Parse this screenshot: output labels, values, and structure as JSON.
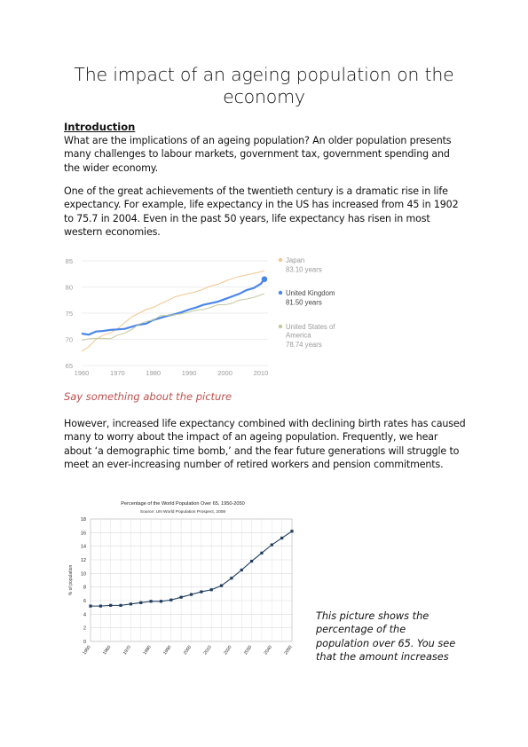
{
  "document": {
    "title": "The impact of an ageing population on the economy",
    "section_heading": "Introduction",
    "paragraph_1": "What are the implications of an ageing population? An older population presents many challenges to labour markets, government tax, government spending and the wider economy.",
    "paragraph_2": "One of the great achievements of the twentieth century is a dramatic rise in life expectancy. For example, life expectancy in the US has increased from 45 in 1902 to 75.7 in 2004. Even in the past 50 years, life expectancy has risen in most western economies.",
    "caption_1": "Say something about the picture",
    "paragraph_3": "However, increased life expectancy combined with declining birth rates has caused many to worry about the impact of an ageing population. Frequently, we hear about ‘a demographic time bomb,’ and the fear future generations will struggle to meet an ever-increasing number of retired workers and pension commitments.",
    "side_note": "This picture shows the percentage of the population over 65. You see that the amount increases"
  },
  "chart_data": [
    {
      "type": "line",
      "title": "",
      "xlabel": "",
      "ylabel": "",
      "xlim": [
        1960,
        2012
      ],
      "ylim": [
        65,
        85
      ],
      "x_ticks": [
        1960,
        1970,
        1980,
        1990,
        2000,
        2010
      ],
      "y_ticks": [
        65,
        70,
        75,
        80,
        85
      ],
      "grid": true,
      "legend_position": "right",
      "x": [
        1960,
        1962,
        1964,
        1966,
        1968,
        1970,
        1972,
        1974,
        1976,
        1978,
        1980,
        1982,
        1984,
        1986,
        1988,
        1990,
        1992,
        1994,
        1996,
        1998,
        2000,
        2002,
        2004,
        2006,
        2008,
        2010,
        2011
      ],
      "series": [
        {
          "name": "Japan",
          "value_label": "83.10 years",
          "color": "#f0c68e",
          "values": [
            67.7,
            68.6,
            70.0,
            70.8,
            71.2,
            72.0,
            73.2,
            74.3,
            75.0,
            75.7,
            76.1,
            76.8,
            77.4,
            78.1,
            78.5,
            78.8,
            79.1,
            79.6,
            80.2,
            80.5,
            81.1,
            81.6,
            82.0,
            82.3,
            82.6,
            82.9,
            83.1
          ]
        },
        {
          "name": "United Kingdom",
          "value_label": "81.50 years",
          "color": "#4a86e8",
          "values": [
            71.1,
            70.9,
            71.5,
            71.6,
            71.8,
            71.9,
            72.0,
            72.4,
            72.8,
            73.0,
            73.7,
            74.1,
            74.5,
            74.8,
            75.2,
            75.7,
            76.1,
            76.6,
            76.9,
            77.2,
            77.7,
            78.2,
            78.7,
            79.4,
            79.8,
            80.6,
            81.5
          ]
        },
        {
          "name": "United States of America",
          "value_label": "78.74 years",
          "color": "#c3c89a",
          "values": [
            69.8,
            70.1,
            70.2,
            70.2,
            70.1,
            70.8,
            71.2,
            71.9,
            72.9,
            73.4,
            73.7,
            74.5,
            74.6,
            74.7,
            74.9,
            75.2,
            75.6,
            75.7,
            76.1,
            76.6,
            76.6,
            76.9,
            77.5,
            77.7,
            78.0,
            78.5,
            78.74
          ]
        }
      ]
    },
    {
      "type": "line",
      "title": "Percentage of the World Population Over 65, 1950-2050",
      "subtitle": "Source: UN World Population Prospect, 2008",
      "xlabel": "",
      "ylabel": "% of population",
      "ylim": [
        0,
        18
      ],
      "y_ticks": [
        0,
        2,
        4,
        6,
        8,
        10,
        12,
        14,
        16,
        18
      ],
      "x_tick_labels": [
        "1950",
        "1960",
        "1970",
        "1980",
        "1990",
        "2000",
        "2010",
        "2020",
        "2030",
        "2040",
        "2050"
      ],
      "grid": true,
      "x": [
        1950,
        1955,
        1960,
        1965,
        1970,
        1975,
        1980,
        1985,
        1990,
        1995,
        2000,
        2005,
        2010,
        2015,
        2020,
        2025,
        2030,
        2035,
        2040,
        2045,
        2050
      ],
      "series": [
        {
          "color": "#1f3c5e",
          "values": [
            5.2,
            5.2,
            5.3,
            5.3,
            5.5,
            5.7,
            5.9,
            5.9,
            6.1,
            6.5,
            6.9,
            7.3,
            7.6,
            8.2,
            9.3,
            10.5,
            11.8,
            13.0,
            14.2,
            15.2,
            16.2
          ]
        }
      ]
    }
  ]
}
